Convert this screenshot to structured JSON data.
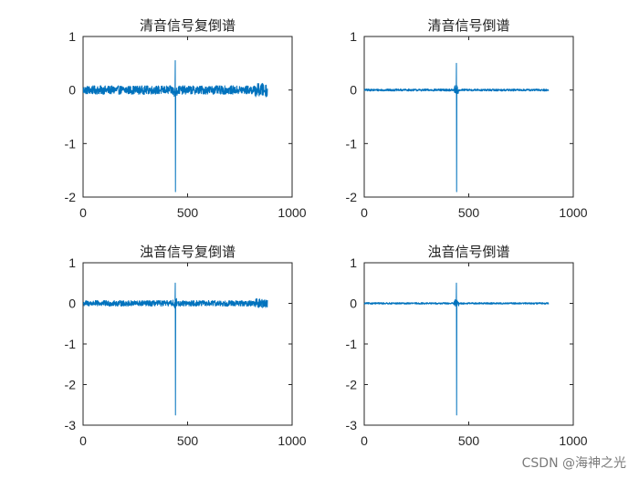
{
  "watermark": "CSDN @海神之光",
  "line_color": "#0072BD",
  "chart_data": [
    {
      "type": "line",
      "title": "清音信号复倒谱",
      "xlim": [
        0,
        1000
      ],
      "ylim": [
        -2,
        1
      ],
      "xticks": [
        0,
        500,
        1000
      ],
      "yticks": [
        1,
        0,
        -1,
        -2
      ],
      "xticklabels": [
        "0",
        "500",
        "1000"
      ],
      "yticklabels": [
        "1",
        "0",
        "-1",
        "-2"
      ],
      "n_points": 882,
      "noise_amplitude": 0.08,
      "peak": {
        "x": 441,
        "max": 0.55,
        "min": -1.9
      },
      "grid": false
    },
    {
      "type": "line",
      "title": "清音信号倒谱",
      "xlim": [
        0,
        1000
      ],
      "ylim": [
        -2,
        1
      ],
      "xticks": [
        0,
        500,
        1000
      ],
      "yticks": [
        1,
        0,
        -1,
        -2
      ],
      "xticklabels": [
        "0",
        "500",
        "1000"
      ],
      "yticklabels": [
        "1",
        "0",
        "-1",
        "-2"
      ],
      "n_points": 882,
      "noise_amplitude": 0.02,
      "peak": {
        "x": 441,
        "max": 0.5,
        "min": -1.9
      },
      "grid": false
    },
    {
      "type": "line",
      "title": "浊音信号复倒谱",
      "xlim": [
        0,
        1000
      ],
      "ylim": [
        -3,
        1
      ],
      "xticks": [
        0,
        500,
        1000
      ],
      "yticks": [
        1,
        0,
        -1,
        -2,
        -3
      ],
      "xticklabels": [
        "0",
        "500",
        "1000"
      ],
      "yticklabels": [
        "1",
        "0",
        "-1",
        "-2",
        "-3"
      ],
      "n_points": 882,
      "noise_amplitude": 0.07,
      "peak": {
        "x": 441,
        "max": 0.5,
        "min": -2.75
      },
      "grid": false
    },
    {
      "type": "line",
      "title": "浊音信号倒谱",
      "xlim": [
        0,
        1000
      ],
      "ylim": [
        -3,
        1
      ],
      "xticks": [
        0,
        500,
        1000
      ],
      "yticks": [
        1,
        0,
        -1,
        -2,
        -3
      ],
      "xticklabels": [
        "0",
        "500",
        "1000"
      ],
      "yticklabels": [
        "1",
        "0",
        "-1",
        "-2",
        "-3"
      ],
      "n_points": 882,
      "noise_amplitude": 0.02,
      "peak": {
        "x": 441,
        "max": 0.5,
        "min": -2.75
      },
      "grid": false
    }
  ]
}
